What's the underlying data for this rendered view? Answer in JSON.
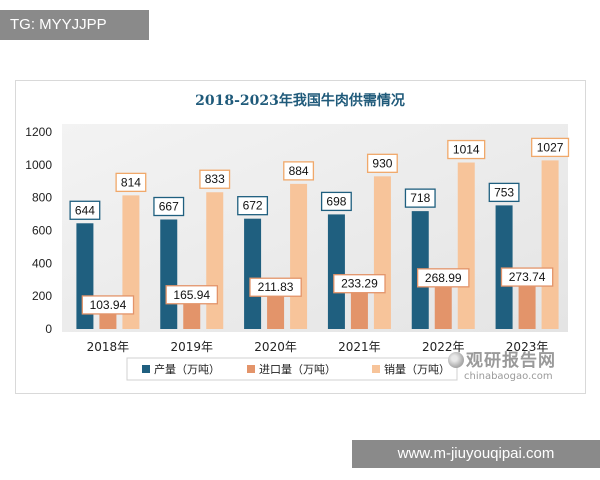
{
  "badges": {
    "tg": "TG: MYYJJPP",
    "url": "www.m-jiuyouqipai.com"
  },
  "watermark": {
    "cn": "观研报告网",
    "en": "chinabaogao.com"
  },
  "chart_data": {
    "type": "bar",
    "title": "2018-2023年我国牛肉供需情况",
    "categories": [
      "2018年",
      "2019年",
      "2020年",
      "2021年",
      "2022年",
      "2023年"
    ],
    "series": [
      {
        "name": "产量（万吨）",
        "values": [
          644,
          667,
          672,
          698,
          718,
          753
        ],
        "labels": [
          "644",
          "667",
          "672",
          "698",
          "718",
          "753"
        ],
        "color": "#1f5f7f"
      },
      {
        "name": "进口量（万吨）",
        "values": [
          103.94,
          165.94,
          211.83,
          233.29,
          268.99,
          273.74
        ],
        "labels": [
          "103.94",
          "165.94",
          "211.83",
          "233.29",
          "268.99",
          "273.74"
        ],
        "color": "#e3946a"
      },
      {
        "name": "销量（万吨）",
        "values": [
          814,
          833,
          884,
          930,
          1014,
          1027
        ],
        "labels": [
          "814",
          "833",
          "884",
          "930",
          "1014",
          "1027"
        ],
        "color": "#f7c49a"
      }
    ],
    "ylim": [
      0,
      1200
    ],
    "yticks": [
      0,
      200,
      400,
      600,
      800,
      1000,
      1200
    ],
    "grid": false,
    "legend": "bottom"
  }
}
